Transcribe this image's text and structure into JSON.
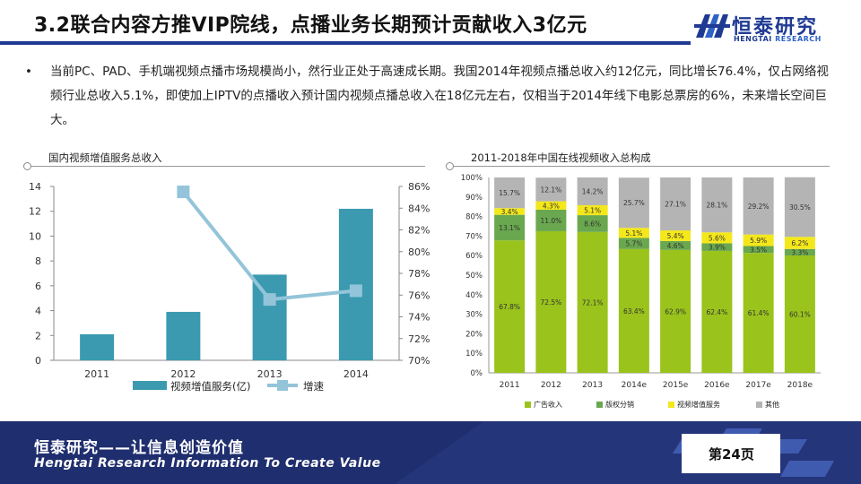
{
  "slide": {
    "title": "3.2联合内容方推VIP院线，点播业务长期预计贡献收入3亿元",
    "bullet": "当前PC、PAD、手机端视频点播市场规模尚小，然行业正处于高速成长期。我国2014年视频点播总收入约12亿元，同比增长76.4%，仅占网络视频行业总收入5.1%，即使加上IPTV的点播收入预计国内视频点播总收入在18亿元左右，仅相当于2014年线下电影总票房的6%，未来增长空间巨大。",
    "bullet_symbol": "•"
  },
  "logo": {
    "cn": "恒泰研究",
    "en_a": "HENGTAI",
    "en_b": "RESEARCH",
    "colors": {
      "primary": "#1f3a93",
      "accent": "#2f62c6"
    }
  },
  "footer": {
    "cn": "恒泰研究——让信息创造价值",
    "en": "Hengtai Research Information To Create Value",
    "page": "第24页",
    "bg_color": "#1f2e6e"
  },
  "chart_data": [
    {
      "type": "bar",
      "panel_title": "国内视频增值服务总收入",
      "categories": [
        "2011",
        "2012",
        "2013",
        "2014"
      ],
      "series": [
        {
          "name": "视频增值服务(亿)",
          "kind": "bar",
          "axis": "left",
          "color": "#3b9ab0",
          "values": [
            2.1,
            3.9,
            6.9,
            12.2
          ]
        },
        {
          "name": "增速",
          "kind": "line",
          "axis": "right",
          "color": "#93c4d9",
          "values": [
            null,
            85.5,
            75.6,
            76.4
          ]
        }
      ],
      "ylim_left": [
        0,
        14
      ],
      "yticks_left": [
        "0",
        "2",
        "4",
        "6",
        "8",
        "10",
        "12",
        "14"
      ],
      "ylim_right": [
        70,
        86
      ],
      "yticks_right": [
        "70%",
        "72%",
        "74%",
        "76%",
        "78%",
        "80%",
        "82%",
        "84%",
        "86%"
      ],
      "legend": "bottom",
      "grid": false
    },
    {
      "type": "bar",
      "stacked": true,
      "panel_title": "2011-2018年中国在线视频收入总构成",
      "categories": [
        "2011",
        "2012",
        "2013",
        "2014e",
        "2015e",
        "2016e",
        "2017e",
        "2018e"
      ],
      "series": [
        {
          "name": "广告收入",
          "color": "#9ac31c",
          "values": [
            67.8,
            72.5,
            72.1,
            63.4,
            62.9,
            62.4,
            61.4,
            60.1
          ],
          "labels": [
            "67.8%",
            "72.5%",
            "72.1%",
            "63.4%",
            "62.9%",
            "62.4%",
            "61.4%",
            "60.1%"
          ]
        },
        {
          "name": "版权分销",
          "color": "#6aa84f",
          "values": [
            13.1,
            11.0,
            8.6,
            5.7,
            4.6,
            3.9,
            3.5,
            3.3
          ],
          "labels": [
            "13.1%",
            "11.0%",
            "8.6%",
            "5.7%",
            "4.6%",
            "3.9%",
            "3.5%",
            "3.3%"
          ]
        },
        {
          "name": "视频增值服务",
          "color": "#f4e81a",
          "values": [
            3.4,
            4.3,
            5.1,
            5.1,
            5.4,
            5.6,
            5.9,
            6.2
          ],
          "labels": [
            "3.4%",
            "4.3%",
            "5.1%",
            "5.1%",
            "5.4%",
            "5.6%",
            "5.9%",
            "6.2%"
          ]
        },
        {
          "name": "其他",
          "color": "#b4b4b4",
          "values": [
            15.7,
            12.1,
            14.2,
            25.7,
            27.1,
            28.1,
            29.2,
            30.5
          ],
          "labels": [
            "15.7%",
            "12.1%",
            "14.2%",
            "25.7%",
            "27.1%",
            "28.1%",
            "29.2%",
            "30.5%"
          ]
        }
      ],
      "ylim": [
        0,
        100
      ],
      "yticks": [
        "0%",
        "10%",
        "20%",
        "30%",
        "40%",
        "50%",
        "60%",
        "70%",
        "80%",
        "90%",
        "100%"
      ],
      "legend": "bottom",
      "grid": false
    }
  ]
}
